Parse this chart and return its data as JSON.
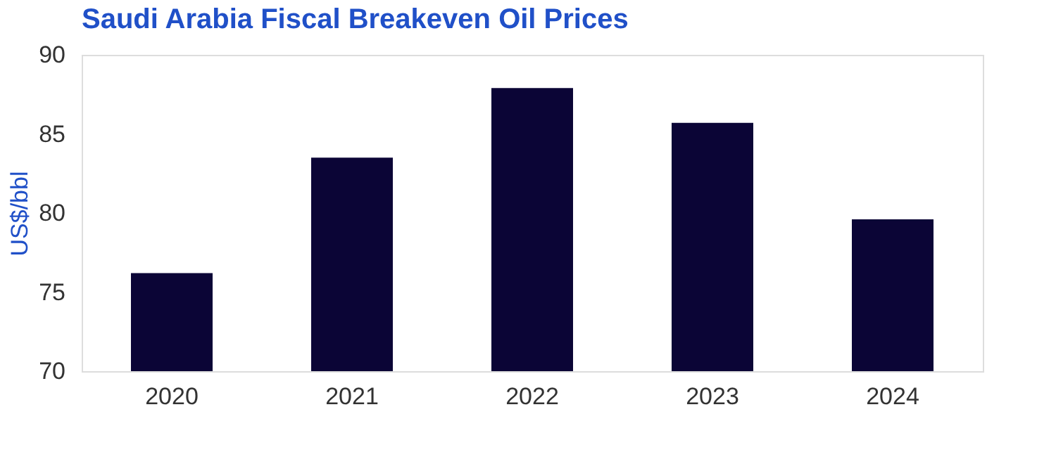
{
  "chart_data": {
    "type": "bar",
    "title": "Saudi Arabia Fiscal Breakeven Oil Prices",
    "ylabel": "US$/bbl",
    "categories": [
      "2020",
      "2021",
      "2022",
      "2023",
      "2024"
    ],
    "values": [
      76.2,
      83.5,
      87.9,
      85.7,
      79.6
    ],
    "color": "#0b0536",
    "ylim": [
      70,
      90
    ],
    "yticks": [
      70,
      75,
      80,
      85,
      90
    ],
    "grid": false
  }
}
